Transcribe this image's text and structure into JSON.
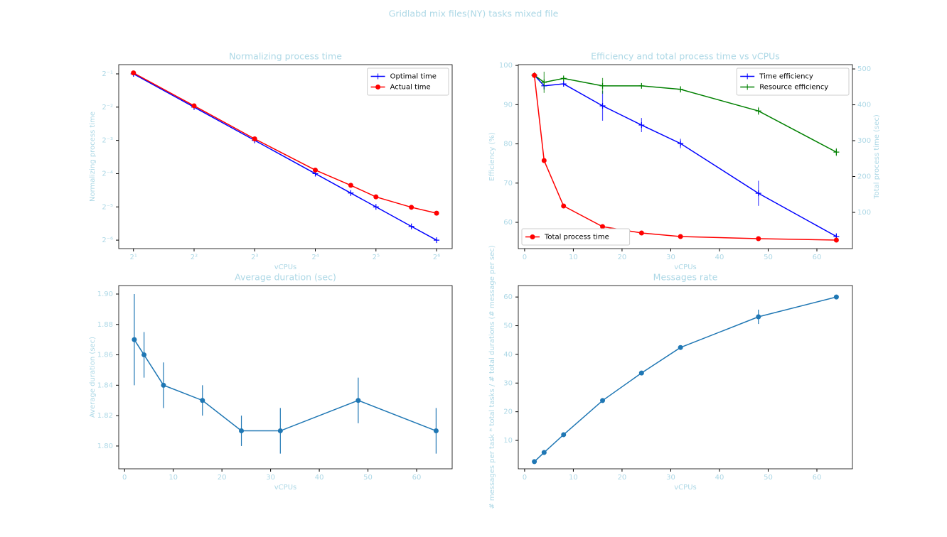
{
  "title": "Gridlabd mix files(NY) tasks mixed file",
  "chart_data": [
    {
      "type": "line",
      "title": "Normalizing process time",
      "xlabel": "vCPUs",
      "ylabel": "Normalizing process time",
      "xscale": "log",
      "yscale": "log",
      "legend": "upper right",
      "x": [
        2,
        4,
        8,
        16,
        24,
        32,
        48,
        64
      ],
      "xlim": [
        1.69,
        76.5
      ],
      "ylim": [
        0.0131,
        0.606
      ],
      "xticks": [
        {
          "value": 2,
          "label": "2¹"
        },
        {
          "value": 4,
          "label": "2²"
        },
        {
          "value": 8,
          "label": "2³"
        },
        {
          "value": 16,
          "label": "2⁴"
        },
        {
          "value": 32,
          "label": "2⁵"
        },
        {
          "value": 64,
          "label": "2⁶"
        }
      ],
      "yticks": [
        {
          "value": 0.5,
          "label": "2⁻¹"
        },
        {
          "value": 0.25,
          "label": "2⁻²"
        },
        {
          "value": 0.125,
          "label": "2⁻³"
        },
        {
          "value": 0.0625,
          "label": "2⁻⁴"
        },
        {
          "value": 0.03125,
          "label": "2⁻⁵"
        },
        {
          "value": 0.015625,
          "label": "2⁻⁶"
        }
      ],
      "series": [
        {
          "name": "Optimal time",
          "color": "#0000ff",
          "marker": "+",
          "values": [
            0.5,
            0.25,
            0.125,
            0.0625,
            0.0417,
            0.03125,
            0.0208,
            0.015625
          ]
        },
        {
          "name": "Actual time",
          "color": "#ff0000",
          "marker": "o",
          "values": [
            0.51,
            0.257,
            0.129,
            0.0673,
            0.049,
            0.0385,
            0.031,
            0.0274
          ]
        }
      ]
    },
    {
      "type": "line",
      "title": "Efficiency and total process time vs vCPUs",
      "xlabel": "vCPUs",
      "ylabel": "Efficiency (%)",
      "y2label": "Total process time (sec)",
      "legend": "upper right",
      "y2legend": "lower left",
      "x": [
        2,
        4,
        8,
        16,
        24,
        32,
        48,
        64
      ],
      "xlim": [
        -1.3,
        67.3
      ],
      "ylim": [
        53.3,
        100.2
      ],
      "y2lim": [
        -1,
        512
      ],
      "xticks": [
        0,
        10,
        20,
        30,
        40,
        50,
        60
      ],
      "yticks": [
        60,
        70,
        80,
        90,
        100
      ],
      "y2ticks": [
        100,
        200,
        300,
        400,
        500
      ],
      "series": [
        {
          "name": "Time efficiency",
          "color": "#0000ff",
          "marker": "+",
          "values": [
            97.5,
            94.8,
            95.3,
            89.7,
            84.8,
            80.1,
            67.4,
            56.4
          ],
          "errors": [
            0,
            1,
            0.3,
            3.8,
            1.8,
            1.2,
            3.2,
            0.8
          ]
        },
        {
          "name": "Resource efficiency",
          "color": "#008000",
          "marker": "+",
          "values": [
            97.5,
            95.7,
            96.7,
            94.8,
            94.8,
            93.9,
            88.4,
            77.9
          ],
          "errors": [
            0,
            2.7,
            0.3,
            2,
            0.3,
            0.8,
            1,
            1
          ]
        },
        {
          "name": "Total process time",
          "color": "#ff0000",
          "marker": "o",
          "axis": "y2",
          "values": [
            482,
            244.6,
            117.8,
            60.4,
            42.6,
            32.7,
            26.7,
            22.8
          ]
        }
      ]
    },
    {
      "type": "line",
      "title": "Average duration (sec)",
      "xlabel": "vCPUs",
      "ylabel": "Average duration (sec)",
      "x": [
        2,
        4,
        8,
        16,
        24,
        32,
        48,
        64
      ],
      "xlim": [
        -1.2,
        67.3
      ],
      "ylim": [
        1.785,
        1.9056
      ],
      "xticks": [
        0,
        10,
        20,
        30,
        40,
        50,
        60
      ],
      "yticks": [
        {
          "value": 1.8,
          "label": "1.80"
        },
        1.82,
        1.84,
        1.86,
        1.88,
        {
          "value": 1.9,
          "label": "1.90"
        }
      ],
      "series": [
        {
          "color": "#1f77b4",
          "marker": "o",
          "values": [
            1.87,
            1.86,
            1.84,
            1.83,
            1.81,
            1.81,
            1.83,
            1.81
          ],
          "errors": [
            0.03,
            0.015,
            0.015,
            0.01,
            0.01,
            0.015,
            0.015,
            0.015
          ]
        }
      ]
    },
    {
      "type": "line",
      "title": "Messages rate",
      "xlabel": "vCPUs",
      "ylabel": "# messages per task * total tasks / # total durations (# message per sec)",
      "x": [
        2,
        4,
        8,
        16,
        24,
        32,
        48,
        64
      ],
      "xlim": [
        -1.3,
        67.3
      ],
      "ylim": [
        0.1,
        64
      ],
      "xticks": [
        0,
        10,
        20,
        30,
        40,
        50,
        60
      ],
      "yticks": [
        10,
        20,
        30,
        40,
        50,
        60
      ],
      "series": [
        {
          "color": "#1f77b4",
          "marker": "o",
          "values": [
            2.6,
            5.8,
            12.0,
            23.9,
            33.5,
            42.4,
            53.1,
            60.0
          ],
          "errors": [
            0.3,
            0.3,
            0.3,
            0.3,
            0.3,
            0.5,
            2.5,
            0.5
          ]
        }
      ]
    }
  ]
}
